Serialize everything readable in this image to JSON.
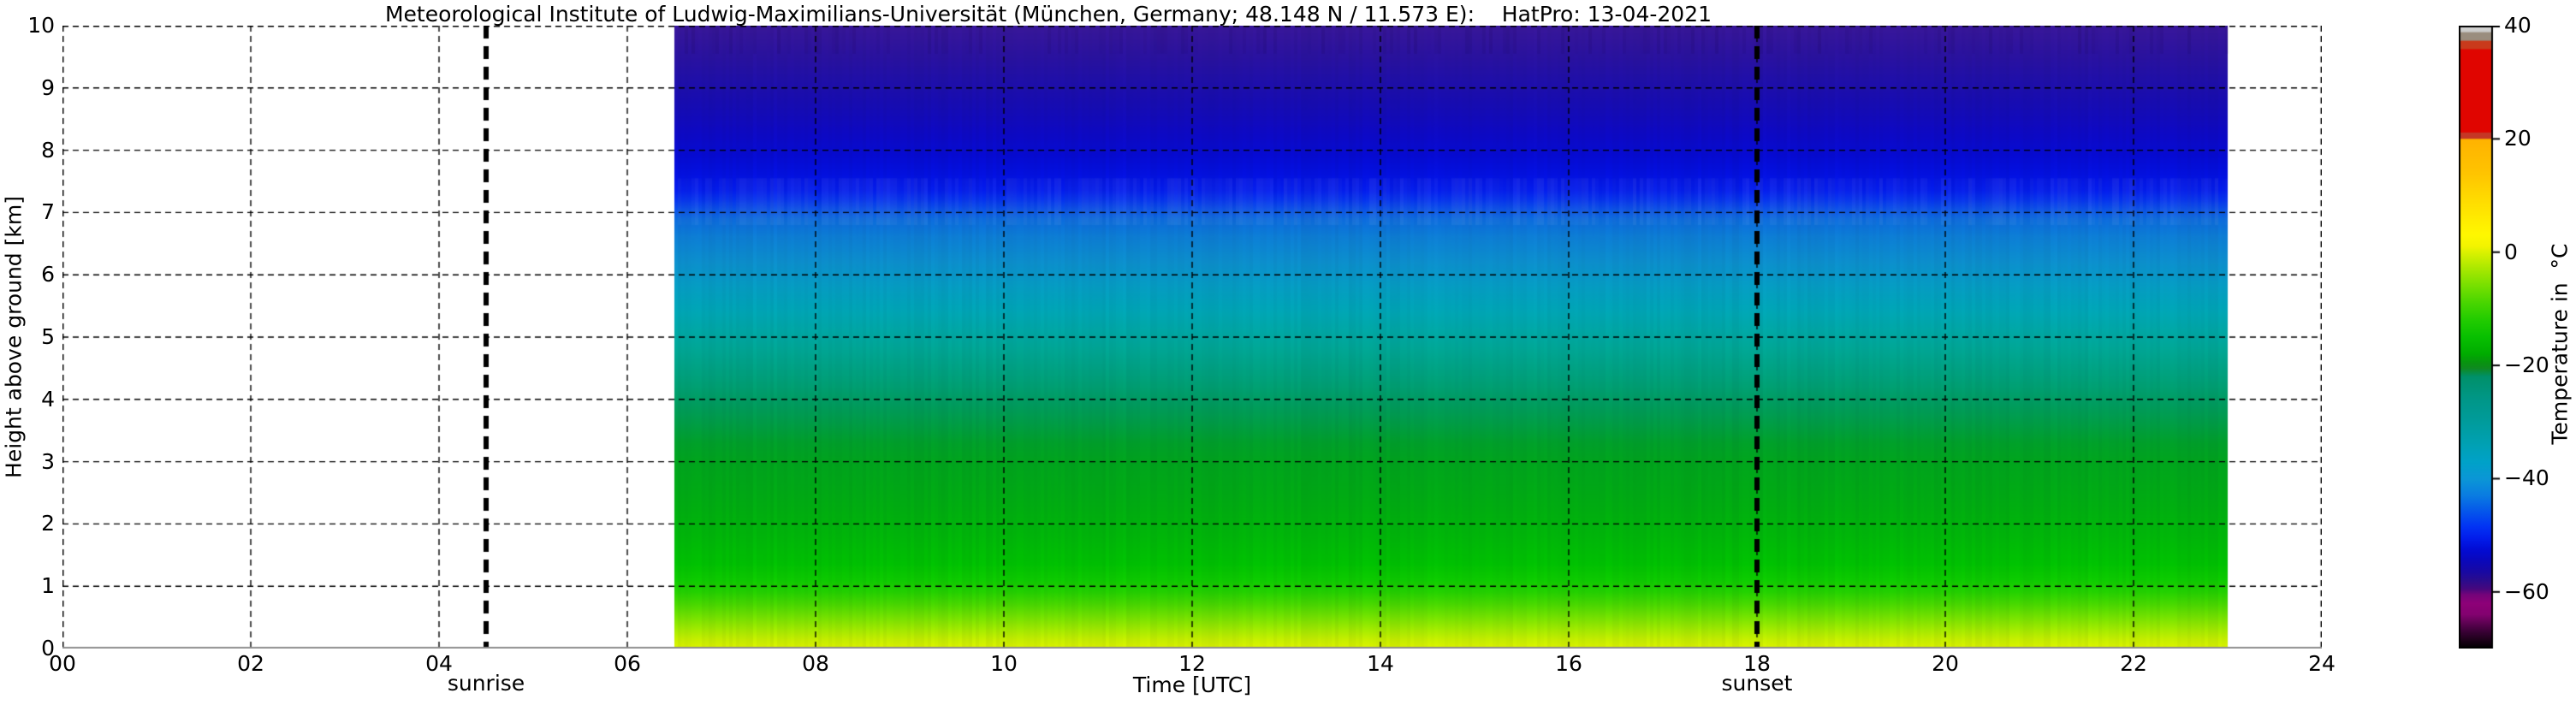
{
  "chart_data": {
    "type": "heatmap",
    "title": "Meteorological Institute of Ludwig-Maximilians-Universität (München, Germany; 48.148 N / 11.573 E):    HatPro: 13-04-2021",
    "instrument": "HatPro",
    "date": "13-04-2021",
    "location": "München, Germany; 48.148 N / 11.573 E",
    "xlabel": "Time [UTC]",
    "ylabel": "Height above ground [km]",
    "colorbar_label": "Temperature in  °C",
    "x_range_hours": [
      0,
      24
    ],
    "x_tick_hours": [
      0,
      2,
      4,
      6,
      8,
      10,
      12,
      14,
      16,
      18,
      20,
      22,
      24
    ],
    "x_tick_labels": [
      "00",
      "02",
      "04",
      "06",
      "08",
      "10",
      "12",
      "14",
      "16",
      "18",
      "20",
      "22",
      "24"
    ],
    "y_range_km": [
      0,
      10
    ],
    "y_tick_km": [
      0,
      1,
      2,
      3,
      4,
      5,
      6,
      7,
      8,
      9,
      10
    ],
    "y_tick_labels": [
      "0",
      "1",
      "2",
      "3",
      "4",
      "5",
      "6",
      "7",
      "8",
      "9",
      "10"
    ],
    "grid": {
      "style": "dashed",
      "color": "#000000"
    },
    "background_no_data": "#ffffff",
    "data_coverage_hours": [
      6.5,
      23.0
    ],
    "annotations": [
      {
        "name": "sunrise",
        "label": "sunrise",
        "hour": 4.5
      },
      {
        "name": "sunset",
        "label": "sunset",
        "hour": 18.0
      }
    ],
    "colorbar": {
      "min_c": -70,
      "max_c": 40,
      "tick_values_c": [
        40,
        20,
        0,
        -20,
        -40,
        -60
      ],
      "tick_labels": [
        "40",
        "20",
        "0",
        "−20",
        "−40",
        "−60"
      ],
      "stops": [
        [
          40,
          "#dedede"
        ],
        [
          38.9,
          "#c8c8c6"
        ],
        [
          38.8,
          "#9a8d7e"
        ],
        [
          37.4,
          "#9a8d7e"
        ],
        [
          37.3,
          "#c93a1c"
        ],
        [
          35.9,
          "#c93a1c"
        ],
        [
          35.8,
          "#e00500"
        ],
        [
          21.2,
          "#e00500"
        ],
        [
          21.1,
          "#c53726"
        ],
        [
          20.05,
          "#c53726"
        ],
        [
          19.95,
          "#ffb300"
        ],
        [
          14,
          "#ffc400"
        ],
        [
          10,
          "#ffd800"
        ],
        [
          6,
          "#ffeb00"
        ],
        [
          3,
          "#fff800"
        ],
        [
          1,
          "#f2f400"
        ],
        [
          0,
          "#dcf200"
        ],
        [
          -3,
          "#a8e800"
        ],
        [
          -6,
          "#76e000"
        ],
        [
          -9,
          "#48d600"
        ],
        [
          -12,
          "#22cc00"
        ],
        [
          -15,
          "#08c000"
        ],
        [
          -18,
          "#00ac00"
        ],
        [
          -19.5,
          "#089410"
        ],
        [
          -20.5,
          "#0f8a20"
        ],
        [
          -22,
          "#00916a"
        ],
        [
          -26,
          "#009788"
        ],
        [
          -30,
          "#009c9c"
        ],
        [
          -34,
          "#00a1b4"
        ],
        [
          -37,
          "#00a2c8"
        ],
        [
          -40,
          "#0b97d6"
        ],
        [
          -43,
          "#0a7ce2"
        ],
        [
          -46,
          "#0554ec"
        ],
        [
          -48.5,
          "#0233f4"
        ],
        [
          -50.5,
          "#021deb"
        ],
        [
          -52.5,
          "#030cd4"
        ],
        [
          -54.5,
          "#0b08bb"
        ],
        [
          -56.5,
          "#1909a2"
        ],
        [
          -58,
          "#2b0c8d"
        ],
        [
          -59.5,
          "#48087e"
        ],
        [
          -60.5,
          "#75047a"
        ],
        [
          -62,
          "#8e0178"
        ],
        [
          -64,
          "#830270"
        ],
        [
          -65.5,
          "#5e0253"
        ],
        [
          -67,
          "#3a0136"
        ],
        [
          -68.5,
          "#1d011a"
        ],
        [
          -70,
          "#000000"
        ]
      ]
    },
    "temperature_profile": [
      {
        "height_km": 0.0,
        "temp_c": 2,
        "color": "#def500"
      },
      {
        "height_km": 0.15,
        "temp_c": 0,
        "color": "#c8f200"
      },
      {
        "height_km": 0.3,
        "temp_c": -2,
        "color": "#a6ee00"
      },
      {
        "height_km": 0.5,
        "temp_c": -4,
        "color": "#78e600"
      },
      {
        "height_km": 0.7,
        "temp_c": -6,
        "color": "#4cdc00"
      },
      {
        "height_km": 0.9,
        "temp_c": -7.5,
        "color": "#26d400"
      },
      {
        "height_km": 1.1,
        "temp_c": -9,
        "color": "#0ece00"
      },
      {
        "height_km": 1.4,
        "temp_c": -11,
        "color": "#00c403"
      },
      {
        "height_km": 1.8,
        "temp_c": -14,
        "color": "#00ba0a"
      },
      {
        "height_km": 2.2,
        "temp_c": -16,
        "color": "#00b210"
      },
      {
        "height_km": 2.6,
        "temp_c": -17.5,
        "color": "#00ac17"
      },
      {
        "height_km": 3.0,
        "temp_c": -19,
        "color": "#00a71e"
      },
      {
        "height_km": 3.3,
        "temp_c": -20,
        "color": "#00a32b"
      },
      {
        "height_km": 3.6,
        "temp_c": -21.5,
        "color": "#00a046"
      },
      {
        "height_km": 3.9,
        "temp_c": -23,
        "color": "#009e5e"
      },
      {
        "height_km": 4.2,
        "temp_c": -25,
        "color": "#00a274"
      },
      {
        "height_km": 4.5,
        "temp_c": -28,
        "color": "#00a586"
      },
      {
        "height_km": 4.8,
        "temp_c": -30,
        "color": "#00a997"
      },
      {
        "height_km": 5.1,
        "temp_c": -32,
        "color": "#00aaa8"
      },
      {
        "height_km": 5.4,
        "temp_c": -34.5,
        "color": "#00a9b8"
      },
      {
        "height_km": 5.8,
        "temp_c": -37.5,
        "color": "#06a0c6"
      },
      {
        "height_km": 6.2,
        "temp_c": -40,
        "color": "#0d92d0"
      },
      {
        "height_km": 6.6,
        "temp_c": -42.5,
        "color": "#0e81d8"
      },
      {
        "height_km": 6.9,
        "temp_c": -44.5,
        "color": "#0d6ce0"
      },
      {
        "height_km": 7.05,
        "temp_c": -46.5,
        "color": "#0b51ea"
      },
      {
        "height_km": 7.2,
        "temp_c": -48.5,
        "color": "#0634f0"
      },
      {
        "height_km": 7.35,
        "temp_c": -50,
        "color": "#041eef"
      },
      {
        "height_km": 7.6,
        "temp_c": -51.5,
        "color": "#0412e4"
      },
      {
        "height_km": 7.9,
        "temp_c": -53,
        "color": "#070cd6"
      },
      {
        "height_km": 8.3,
        "temp_c": -54.5,
        "color": "#0f0ac6"
      },
      {
        "height_km": 8.7,
        "temp_c": -55.5,
        "color": "#170db6"
      },
      {
        "height_km": 9.1,
        "temp_c": -56.5,
        "color": "#2010ac"
      },
      {
        "height_km": 9.5,
        "temp_c": -57.5,
        "color": "#2b13a2"
      },
      {
        "height_km": 10.0,
        "temp_c": -58.5,
        "color": "#3a189c"
      }
    ]
  }
}
